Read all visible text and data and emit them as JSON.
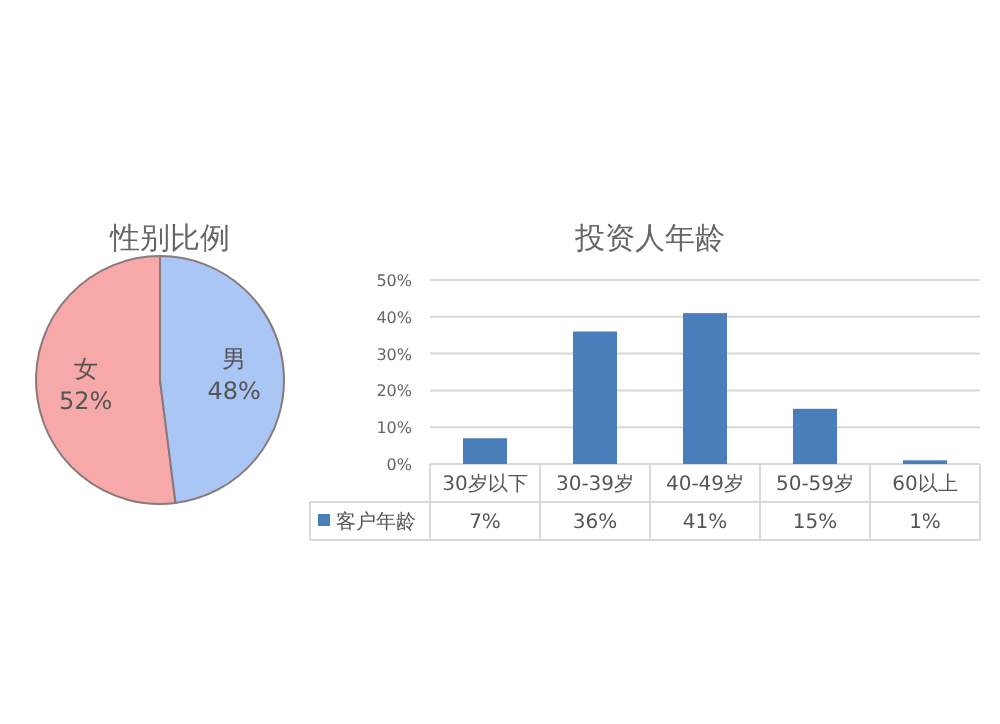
{
  "chart_data": [
    {
      "type": "pie",
      "title": "性别比例",
      "categories": [
        "女",
        "男"
      ],
      "values": [
        52,
        48
      ],
      "value_labels": [
        "52%",
        "48%"
      ],
      "colors": [
        "#f7a8a8",
        "#a9c6f5"
      ]
    },
    {
      "type": "bar",
      "title": "投资人年龄",
      "categories": [
        "30岁以下",
        "30-39岁",
        "40-49岁",
        "50-59岁",
        "60以上"
      ],
      "series": [
        {
          "name": "客户年龄",
          "color": "#4a7ebb",
          "values": [
            7,
            36,
            41,
            15,
            1
          ],
          "value_labels": [
            "7%",
            "36%",
            "41%",
            "15%",
            "1%"
          ]
        }
      ],
      "ylim": [
        0,
        50
      ],
      "yticks": [
        {
          "value": 0,
          "label": "0%"
        },
        {
          "value": 10,
          "label": "10%"
        },
        {
          "value": 20,
          "label": "20%"
        },
        {
          "value": 30,
          "label": "30%"
        },
        {
          "value": 40,
          "label": "40%"
        },
        {
          "value": 50,
          "label": "50%"
        }
      ],
      "grid": "y",
      "legend": "bottom"
    }
  ]
}
